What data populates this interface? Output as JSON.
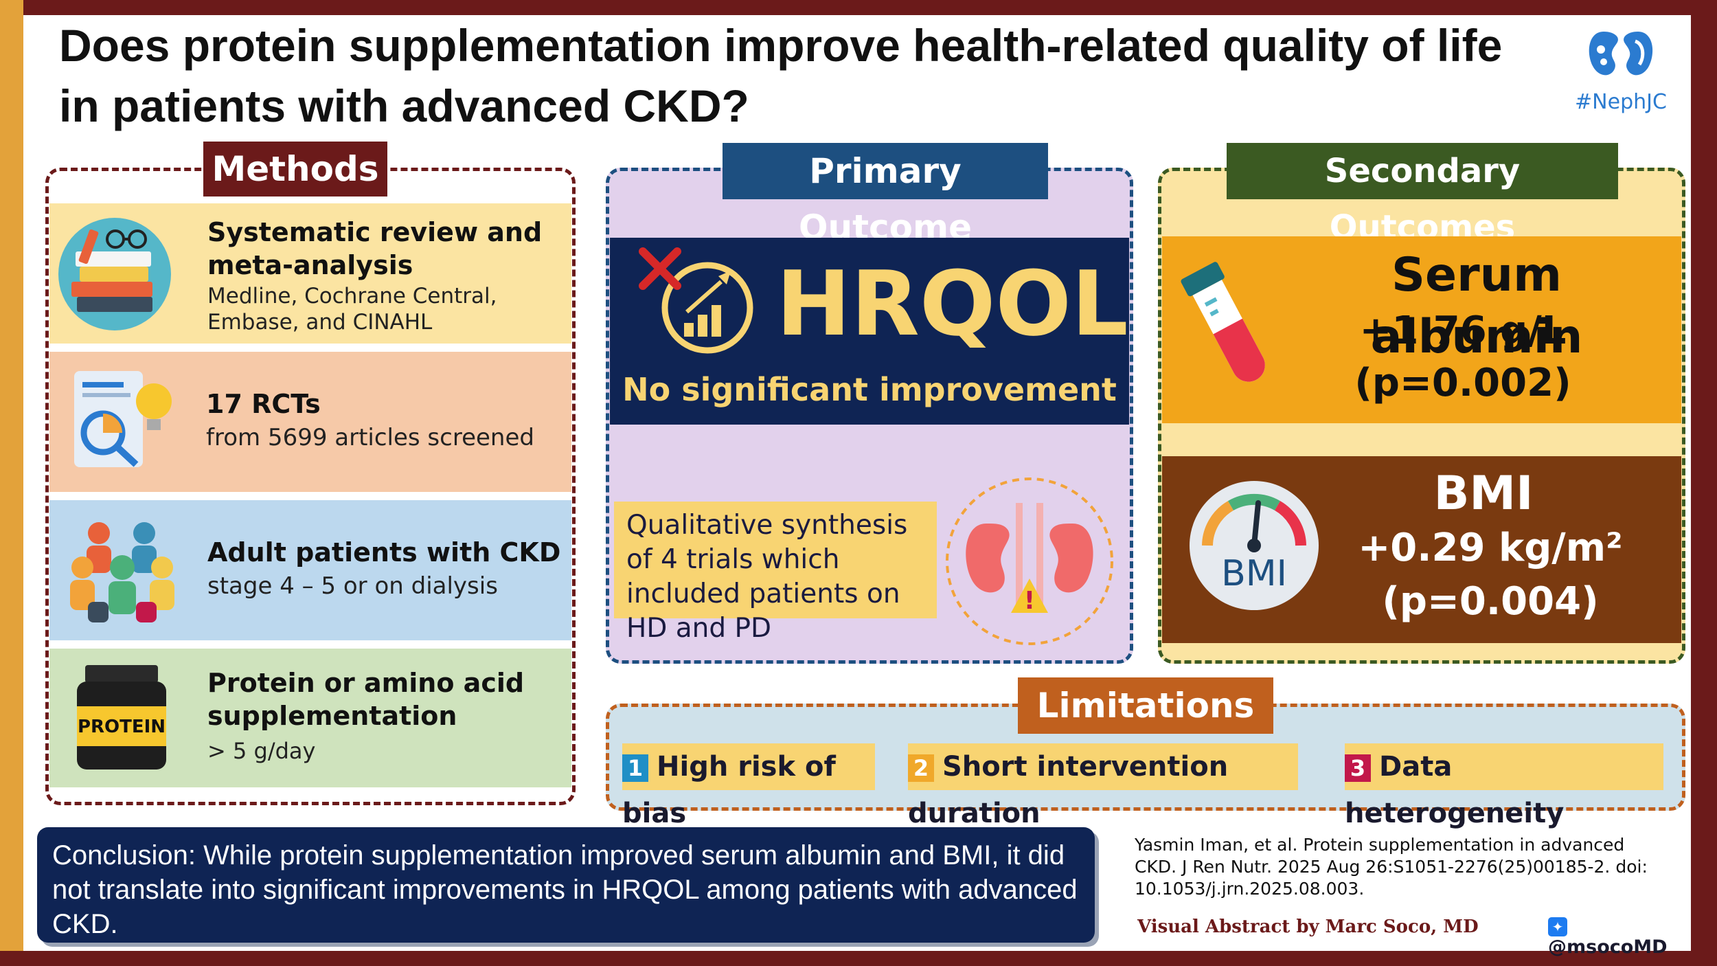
{
  "title": "Does protein supplementation improve health-related quality of life in patients with advanced CKD?",
  "logo": {
    "tag": "#NephJC",
    "icon": "kidney-icon"
  },
  "methods": {
    "label": "Methods",
    "items": [
      {
        "title": "Systematic review and meta-analysis",
        "sub": "Medline, Cochrane Central, Embase, and CINAHL",
        "icon": "books-icon"
      },
      {
        "title": "17 RCTs",
        "sub": "from 5699 articles screened",
        "icon": "document-idea-icon"
      },
      {
        "title": "Adult patients with CKD",
        "sub": "stage 4 – 5 or on dialysis",
        "icon": "people-icon"
      },
      {
        "title": "Protein or amino acid supplementation",
        "sub": "> 5 g/day",
        "icon": "protein-jar-icon",
        "jar_label": "PROTEIN"
      }
    ]
  },
  "primary": {
    "label": "Primary Outcome",
    "big": "HRQOL",
    "result": "No significant improvement",
    "note": "Qualitative synthesis of 4 trials which included patients on HD and PD"
  },
  "secondary": {
    "label": "Secondary Outcomes",
    "albumin": {
      "name": "Serum albumin",
      "value": "+1.76 g/L",
      "p": "(p=0.002)"
    },
    "bmi": {
      "name": "BMI",
      "value": "+0.29 kg/m²",
      "p": "(p=0.004)",
      "gauge_label": "BMI"
    }
  },
  "limitations": {
    "label": "Limitations",
    "items": [
      {
        "num": "1",
        "text": "High risk of bias",
        "color": "#1f8fc6"
      },
      {
        "num": "2",
        "text": "Short intervention duration",
        "color": "#f0a82a"
      },
      {
        "num": "3",
        "text": "Data heterogeneity",
        "color": "#c2184a"
      }
    ]
  },
  "conclusion": "Conclusion: While protein supplementation improved serum albumin and BMI, it did not translate into significant improvements in HRQOL among patients with advanced CKD.",
  "citation": "Yasmin Iman, et al. Protein supplementation in advanced CKD. J Ren Nutr. 2025 Aug 26:S1051-2276(25)00185-2. doi: 10.1053/j.jrn.2025.08.003.",
  "credit": "Visual Abstract by Marc Soco, MD",
  "handle": "@msocoMD",
  "colors": {
    "frame_dark": "#6b1a1a",
    "frame_gold": "#e3a23a",
    "navy": "#0f2454",
    "methods_label": "#6b1a1a",
    "primary_label": "#1d4f80",
    "secondary_label": "#3b5a22",
    "limitations_label": "#c0601e",
    "hrqol_yellow": "#f8d472"
  }
}
